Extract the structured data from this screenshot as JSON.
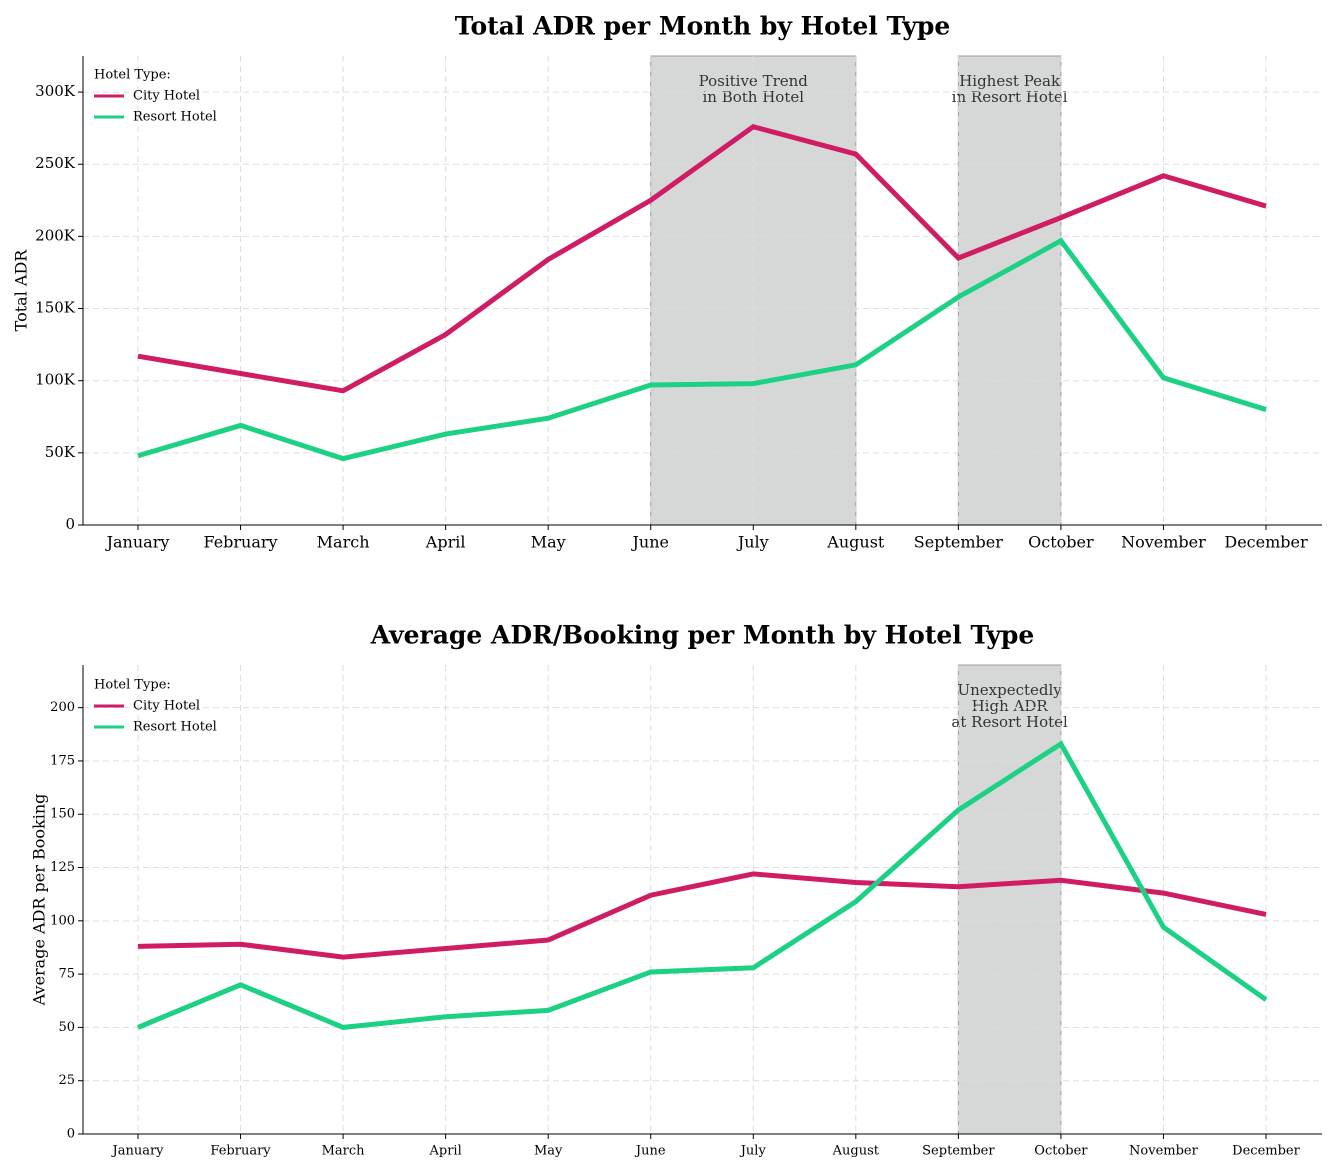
{
  "chart_data": [
    {
      "type": "line",
      "title": "Total ADR per Month by Hotel Type",
      "xlabel": "",
      "ylabel": "Total ADR",
      "categories": [
        "January",
        "February",
        "March",
        "April",
        "May",
        "June",
        "July",
        "August",
        "September",
        "October",
        "November",
        "December"
      ],
      "ylim": [
        0,
        325000
      ],
      "yticks": [
        0,
        50000,
        100000,
        150000,
        200000,
        250000,
        300000
      ],
      "yticklabels": [
        "0",
        "50K",
        "100K",
        "150K",
        "200K",
        "250K",
        "300K"
      ],
      "grid": true,
      "legend": {
        "title": "Hotel Type:",
        "placement": "top-left"
      },
      "series": [
        {
          "name": "City Hotel",
          "color": "#d01c64",
          "values": [
            117000,
            105000,
            93000,
            132000,
            184000,
            225000,
            276000,
            257000,
            185000,
            213000,
            242000,
            221000
          ]
        },
        {
          "name": "Resort Hotel",
          "color": "#1dd184",
          "values": [
            48000,
            69000,
            46000,
            63000,
            74000,
            97000,
            98000,
            111000,
            158000,
            197000,
            102000,
            80000
          ]
        }
      ],
      "shaded_regions": [
        {
          "from": "June",
          "to": "August",
          "label_lines": [
            "Positive Trend",
            "in Both Hotel"
          ]
        },
        {
          "from": "September",
          "to": "October",
          "label_lines": [
            "Highest Peak",
            "in Resort Hotel"
          ]
        }
      ]
    },
    {
      "type": "line",
      "title": "Average ADR/Booking per Month by Hotel Type",
      "xlabel": "",
      "ylabel": "Average ADR per Booking",
      "categories": [
        "January",
        "February",
        "March",
        "April",
        "May",
        "June",
        "July",
        "August",
        "September",
        "October",
        "November",
        "December"
      ],
      "ylim": [
        0,
        220
      ],
      "yticks": [
        0,
        25,
        50,
        75,
        100,
        125,
        150,
        175,
        200
      ],
      "yticklabels": [
        "0",
        "25",
        "50",
        "75",
        "100",
        "125",
        "150",
        "175",
        "200"
      ],
      "grid": true,
      "legend": {
        "title": "Hotel Type:",
        "placement": "top-left"
      },
      "series": [
        {
          "name": "City Hotel",
          "color": "#d01c64",
          "values": [
            88,
            89,
            83,
            87,
            91,
            112,
            122,
            118,
            116,
            119,
            113,
            103
          ]
        },
        {
          "name": "Resort Hotel",
          "color": "#1dd184",
          "values": [
            50,
            70,
            50,
            55,
            58,
            76,
            78,
            109,
            152,
            183,
            97,
            63
          ]
        }
      ],
      "shaded_regions": [
        {
          "from": "September",
          "to": "October",
          "label_lines": [
            "Unexpectedly",
            "High ADR",
            "at Resort Hotel"
          ]
        }
      ]
    }
  ]
}
